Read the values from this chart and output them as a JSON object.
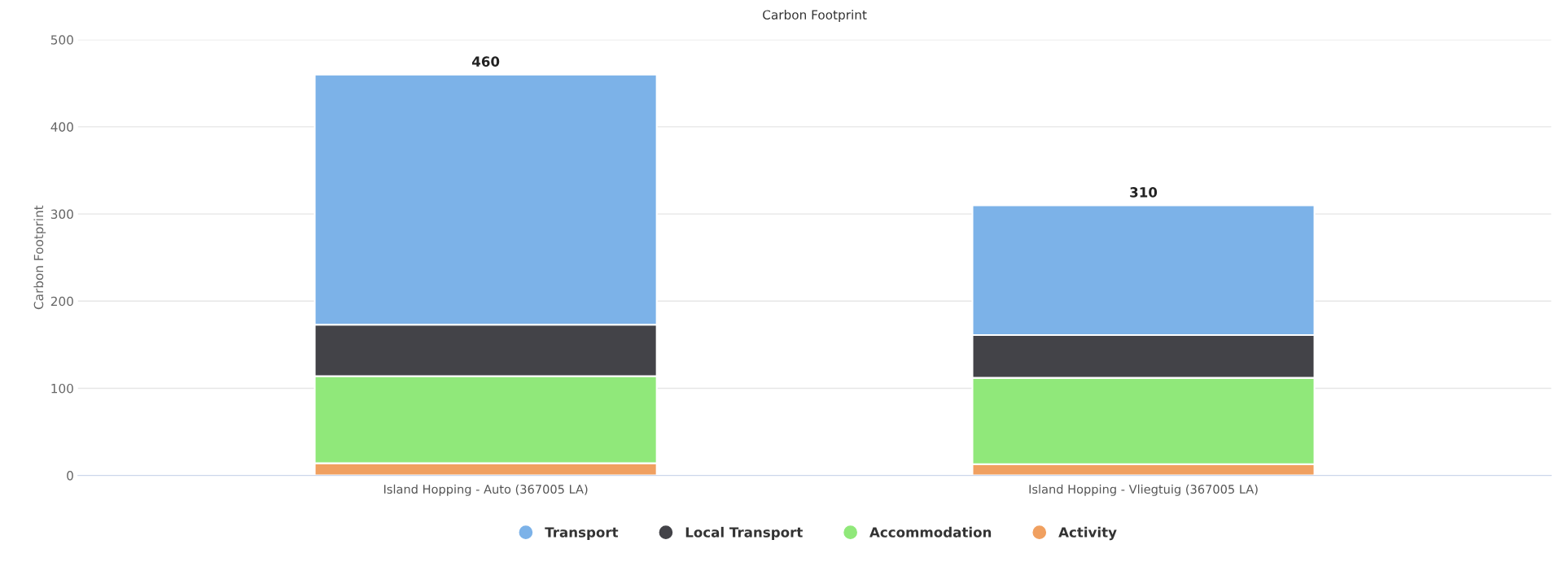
{
  "chart_data": {
    "type": "bar",
    "title": "Carbon Footprint",
    "ylabel": "Carbon Footprint",
    "categories": [
      "Island Hopping - Auto (367005 LA)",
      "Island Hopping - Vliegtuig (367005 LA)"
    ],
    "stacked": true,
    "series": [
      {
        "name": "Activity",
        "color": "#f0a060",
        "values": [
          14,
          13
        ]
      },
      {
        "name": "Accommodation",
        "color": "#90e87a",
        "values": [
          100,
          99
        ]
      },
      {
        "name": "Local Transport",
        "color": "#434348",
        "values": [
          59,
          49
        ]
      },
      {
        "name": "Transport",
        "color": "#7cb2e8",
        "values": [
          287,
          149
        ]
      }
    ],
    "totals": [
      "460",
      "310"
    ],
    "ylim": [
      0,
      500
    ],
    "yticks": [
      0,
      100,
      200,
      300,
      400,
      500
    ],
    "grid": "y",
    "legend": "bottom"
  }
}
